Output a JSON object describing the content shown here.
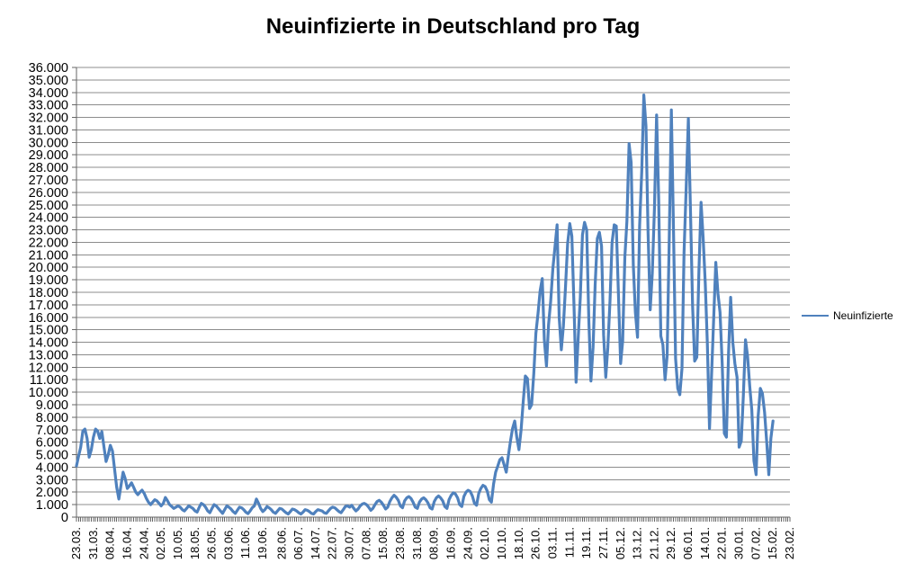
{
  "chart": {
    "title": "Neuinfizierte in Deutschland pro Tag",
    "legend": {
      "label": "Neuinfizierte"
    }
  },
  "chart_data": {
    "type": "line",
    "title": "Neuinfizierte in Deutschland pro Tag",
    "legend_position": "right",
    "grid": true,
    "gridline_color": "#8C8C8C",
    "axis_color": "#666666",
    "label_color": "#000000",
    "x_axis": {
      "tick_labels": [
        "23.03.",
        "31.03.",
        "08.04.",
        "16.04.",
        "24.04.",
        "02.05.",
        "10.05.",
        "18.05.",
        "26.05.",
        "03.06.",
        "11.06.",
        "19.06.",
        "28.06.",
        "06.07.",
        "14.07.",
        "22.07.",
        "30.07.",
        "07.08.",
        "15.08.",
        "23.08.",
        "31.08.",
        "08.09.",
        "16.09.",
        "24.09.",
        "02.10.",
        "10.10.",
        "18.10.",
        "26.10.",
        "03.11.",
        "11.11.",
        "19.11.",
        "27.11.",
        "05.12.",
        "13.12.",
        "21.12.",
        "29.12.",
        "06.01.",
        "14.01.",
        "22.01.",
        "30.01.",
        "07.02.",
        "15.02.",
        "23.02."
      ],
      "tick_day_offsets": [
        0,
        8,
        16,
        24,
        32,
        40,
        48,
        56,
        64,
        72,
        80,
        88,
        97,
        105,
        113,
        121,
        129,
        137,
        145,
        153,
        161,
        169,
        177,
        185,
        193,
        201,
        209,
        217,
        225,
        233,
        241,
        249,
        257,
        265,
        273,
        281,
        289,
        297,
        305,
        313,
        321,
        329,
        337
      ],
      "total_days": 337
    },
    "y_axis": {
      "min": 0,
      "max": 36000,
      "step": 1000,
      "tick_labels": [
        "0",
        "1.000",
        "2.000",
        "3.000",
        "4.000",
        "5.000",
        "6.000",
        "7.000",
        "8.000",
        "9.000",
        "10.000",
        "11.000",
        "12.000",
        "13.000",
        "14.000",
        "15.000",
        "16.000",
        "17.000",
        "18.000",
        "19.000",
        "20.000",
        "21.000",
        "22.000",
        "23.000",
        "24.000",
        "25.000",
        "26.000",
        "27.000",
        "28.000",
        "29.000",
        "30.000",
        "31.000",
        "32.000",
        "33.000",
        "34.000",
        "35.000",
        "36.000"
      ]
    },
    "series": [
      {
        "name": "Neuinfizierte",
        "color": "#4F81BD",
        "start_label": "23.03.",
        "frequency": "daily",
        "values": [
          4100,
          4900,
          5600,
          6900,
          7050,
          6300,
          4800,
          5400,
          6400,
          7050,
          6900,
          6300,
          6850,
          5600,
          4450,
          5000,
          5750,
          5300,
          3800,
          2400,
          1450,
          2500,
          3600,
          3100,
          2300,
          2500,
          2750,
          2400,
          2000,
          1800,
          2000,
          2160,
          1900,
          1500,
          1200,
          1000,
          1200,
          1400,
          1300,
          1100,
          900,
          1100,
          1580,
          1300,
          1000,
          850,
          700,
          800,
          900,
          800,
          600,
          500,
          700,
          900,
          800,
          700,
          500,
          400,
          800,
          1100,
          1000,
          800,
          500,
          350,
          700,
          1000,
          900,
          700,
          500,
          300,
          600,
          900,
          800,
          650,
          450,
          300,
          550,
          800,
          750,
          600,
          400,
          280,
          500,
          750,
          900,
          1450,
          1100,
          700,
          450,
          600,
          850,
          750,
          600,
          400,
          300,
          500,
          700,
          650,
          500,
          350,
          250,
          450,
          650,
          600,
          500,
          350,
          250,
          400,
          600,
          550,
          450,
          300,
          250,
          450,
          600,
          550,
          500,
          350,
          300,
          500,
          700,
          800,
          750,
          600,
          450,
          350,
          600,
          850,
          900,
          800,
          950,
          700,
          500,
          650,
          900,
          1050,
          1100,
          1000,
          800,
          550,
          700,
          1000,
          1250,
          1350,
          1200,
          950,
          650,
          800,
          1250,
          1550,
          1750,
          1600,
          1350,
          900,
          750,
          1300,
          1550,
          1650,
          1500,
          1200,
          800,
          700,
          1200,
          1450,
          1550,
          1400,
          1150,
          750,
          650,
          1250,
          1550,
          1700,
          1550,
          1300,
          850,
          700,
          1400,
          1750,
          1950,
          1850,
          1550,
          1000,
          850,
          1650,
          2000,
          2150,
          2050,
          1700,
          1100,
          950,
          1900,
          2300,
          2550,
          2450,
          2100,
          1400,
          1200,
          2650,
          3600,
          4100,
          4600,
          4750,
          4200,
          3600,
          4900,
          6100,
          7100,
          7700,
          6400,
          5400,
          7000,
          9200,
          11300,
          11100,
          8700,
          9000,
          11500,
          14700,
          16300,
          18100,
          19100,
          14200,
          12100,
          15400,
          17300,
          19900,
          21600,
          23400,
          16000,
          13400,
          15300,
          18500,
          21900,
          23500,
          22500,
          16900,
          10800,
          14400,
          17600,
          22600,
          23600,
          23000,
          15700,
          10900,
          13600,
          18600,
          22300,
          22800,
          21700,
          14600,
          11200,
          13600,
          17300,
          22000,
          23400,
          23300,
          17800,
          12300,
          14100,
          20800,
          23700,
          29900,
          28400,
          20200,
          16400,
          14400,
          23300,
          27700,
          33800,
          31300,
          22800,
          16600,
          19500,
          24700,
          32200,
          25500,
          14500,
          13800,
          11000,
          12900,
          22500,
          32600,
          22900,
          12700,
          10300,
          9800,
          11900,
          21200,
          26400,
          31900,
          24700,
          16900,
          12500,
          12800,
          19600,
          25200,
          22400,
          18700,
          13900,
          7100,
          11400,
          16000,
          20400,
          17900,
          16400,
          12300,
          6700,
          6400,
          13200,
          17600,
          14000,
          12300,
          11200,
          5600,
          6100,
          9700,
          14200,
          12900,
          10500,
          8600,
          4500,
          3400,
          8100,
          10300,
          9900,
          8400,
          6100,
          3400,
          6300,
          7700
        ]
      }
    ]
  }
}
